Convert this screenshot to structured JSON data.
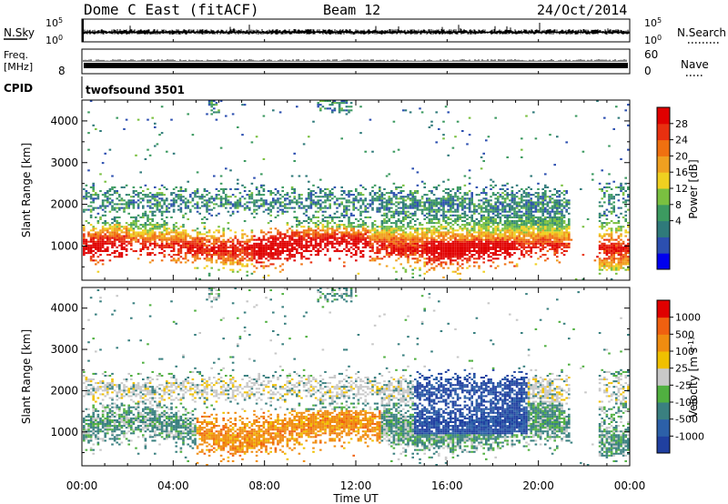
{
  "header": {
    "title": "Dome C East (fitACF)",
    "beam": "Beam 12",
    "date": "24/Oct/2014"
  },
  "top_panel": {
    "left_label": "N.Sky",
    "right_label": "N.Search",
    "left_ticks": [
      "10^5",
      "10^0"
    ],
    "right_ticks": [
      "10^5",
      "10^0"
    ]
  },
  "freq_panel": {
    "left_label_1": "Freq.",
    "left_label_2": "[MHz]",
    "left_tick": "8",
    "right_label": "Nave",
    "right_ticks": [
      "60",
      "0"
    ]
  },
  "cpid": {
    "label": "CPID",
    "value": "twofsound 3501"
  },
  "chart_data": [
    {
      "type": "heatmap",
      "quantity": "Power",
      "ylabel": "Slant Range [km]",
      "yticks": [
        "4000",
        "3000",
        "2000",
        "1000"
      ],
      "ylim": [
        180,
        4500
      ],
      "xlabel": "Time UT",
      "xticks": [
        "00:00",
        "04:00",
        "08:00",
        "12:00",
        "16:00",
        "20:00",
        "00:00"
      ],
      "xlim_hours": [
        0,
        24
      ],
      "colorbar": {
        "label": "Power [dB]",
        "ticks": [
          "28",
          "24",
          "20",
          "16",
          "12",
          "8",
          "4"
        ],
        "range": [
          0,
          30
        ],
        "colors": [
          "#0000ee",
          "#2c4fb0",
          "#2f7a7a",
          "#3c9a60",
          "#7ac040",
          "#f0d020",
          "#f0a020",
          "#f07010",
          "#e83010",
          "#e00000"
        ]
      }
    },
    {
      "type": "heatmap",
      "quantity": "Velocity",
      "ylabel": "Slant Range [km]",
      "yticks": [
        "4000",
        "3000",
        "2000",
        "1000"
      ],
      "ylim": [
        180,
        4500
      ],
      "xlabel": "Time UT",
      "xticks": [
        "00:00",
        "04:00",
        "08:00",
        "12:00",
        "16:00",
        "20:00",
        "00:00"
      ],
      "xlim_hours": [
        0,
        24
      ],
      "colorbar": {
        "label": "Velocity [m s^-1]",
        "ticks": [
          "1000",
          "500",
          "100",
          "25",
          "-25",
          "-100",
          "-500",
          "-1000"
        ],
        "colors": [
          "#2040a0",
          "#2c60a8",
          "#3a8080",
          "#50b040",
          "#c8c8c8",
          "#f0c000",
          "#f08c10",
          "#f06010",
          "#e00000"
        ]
      }
    }
  ]
}
